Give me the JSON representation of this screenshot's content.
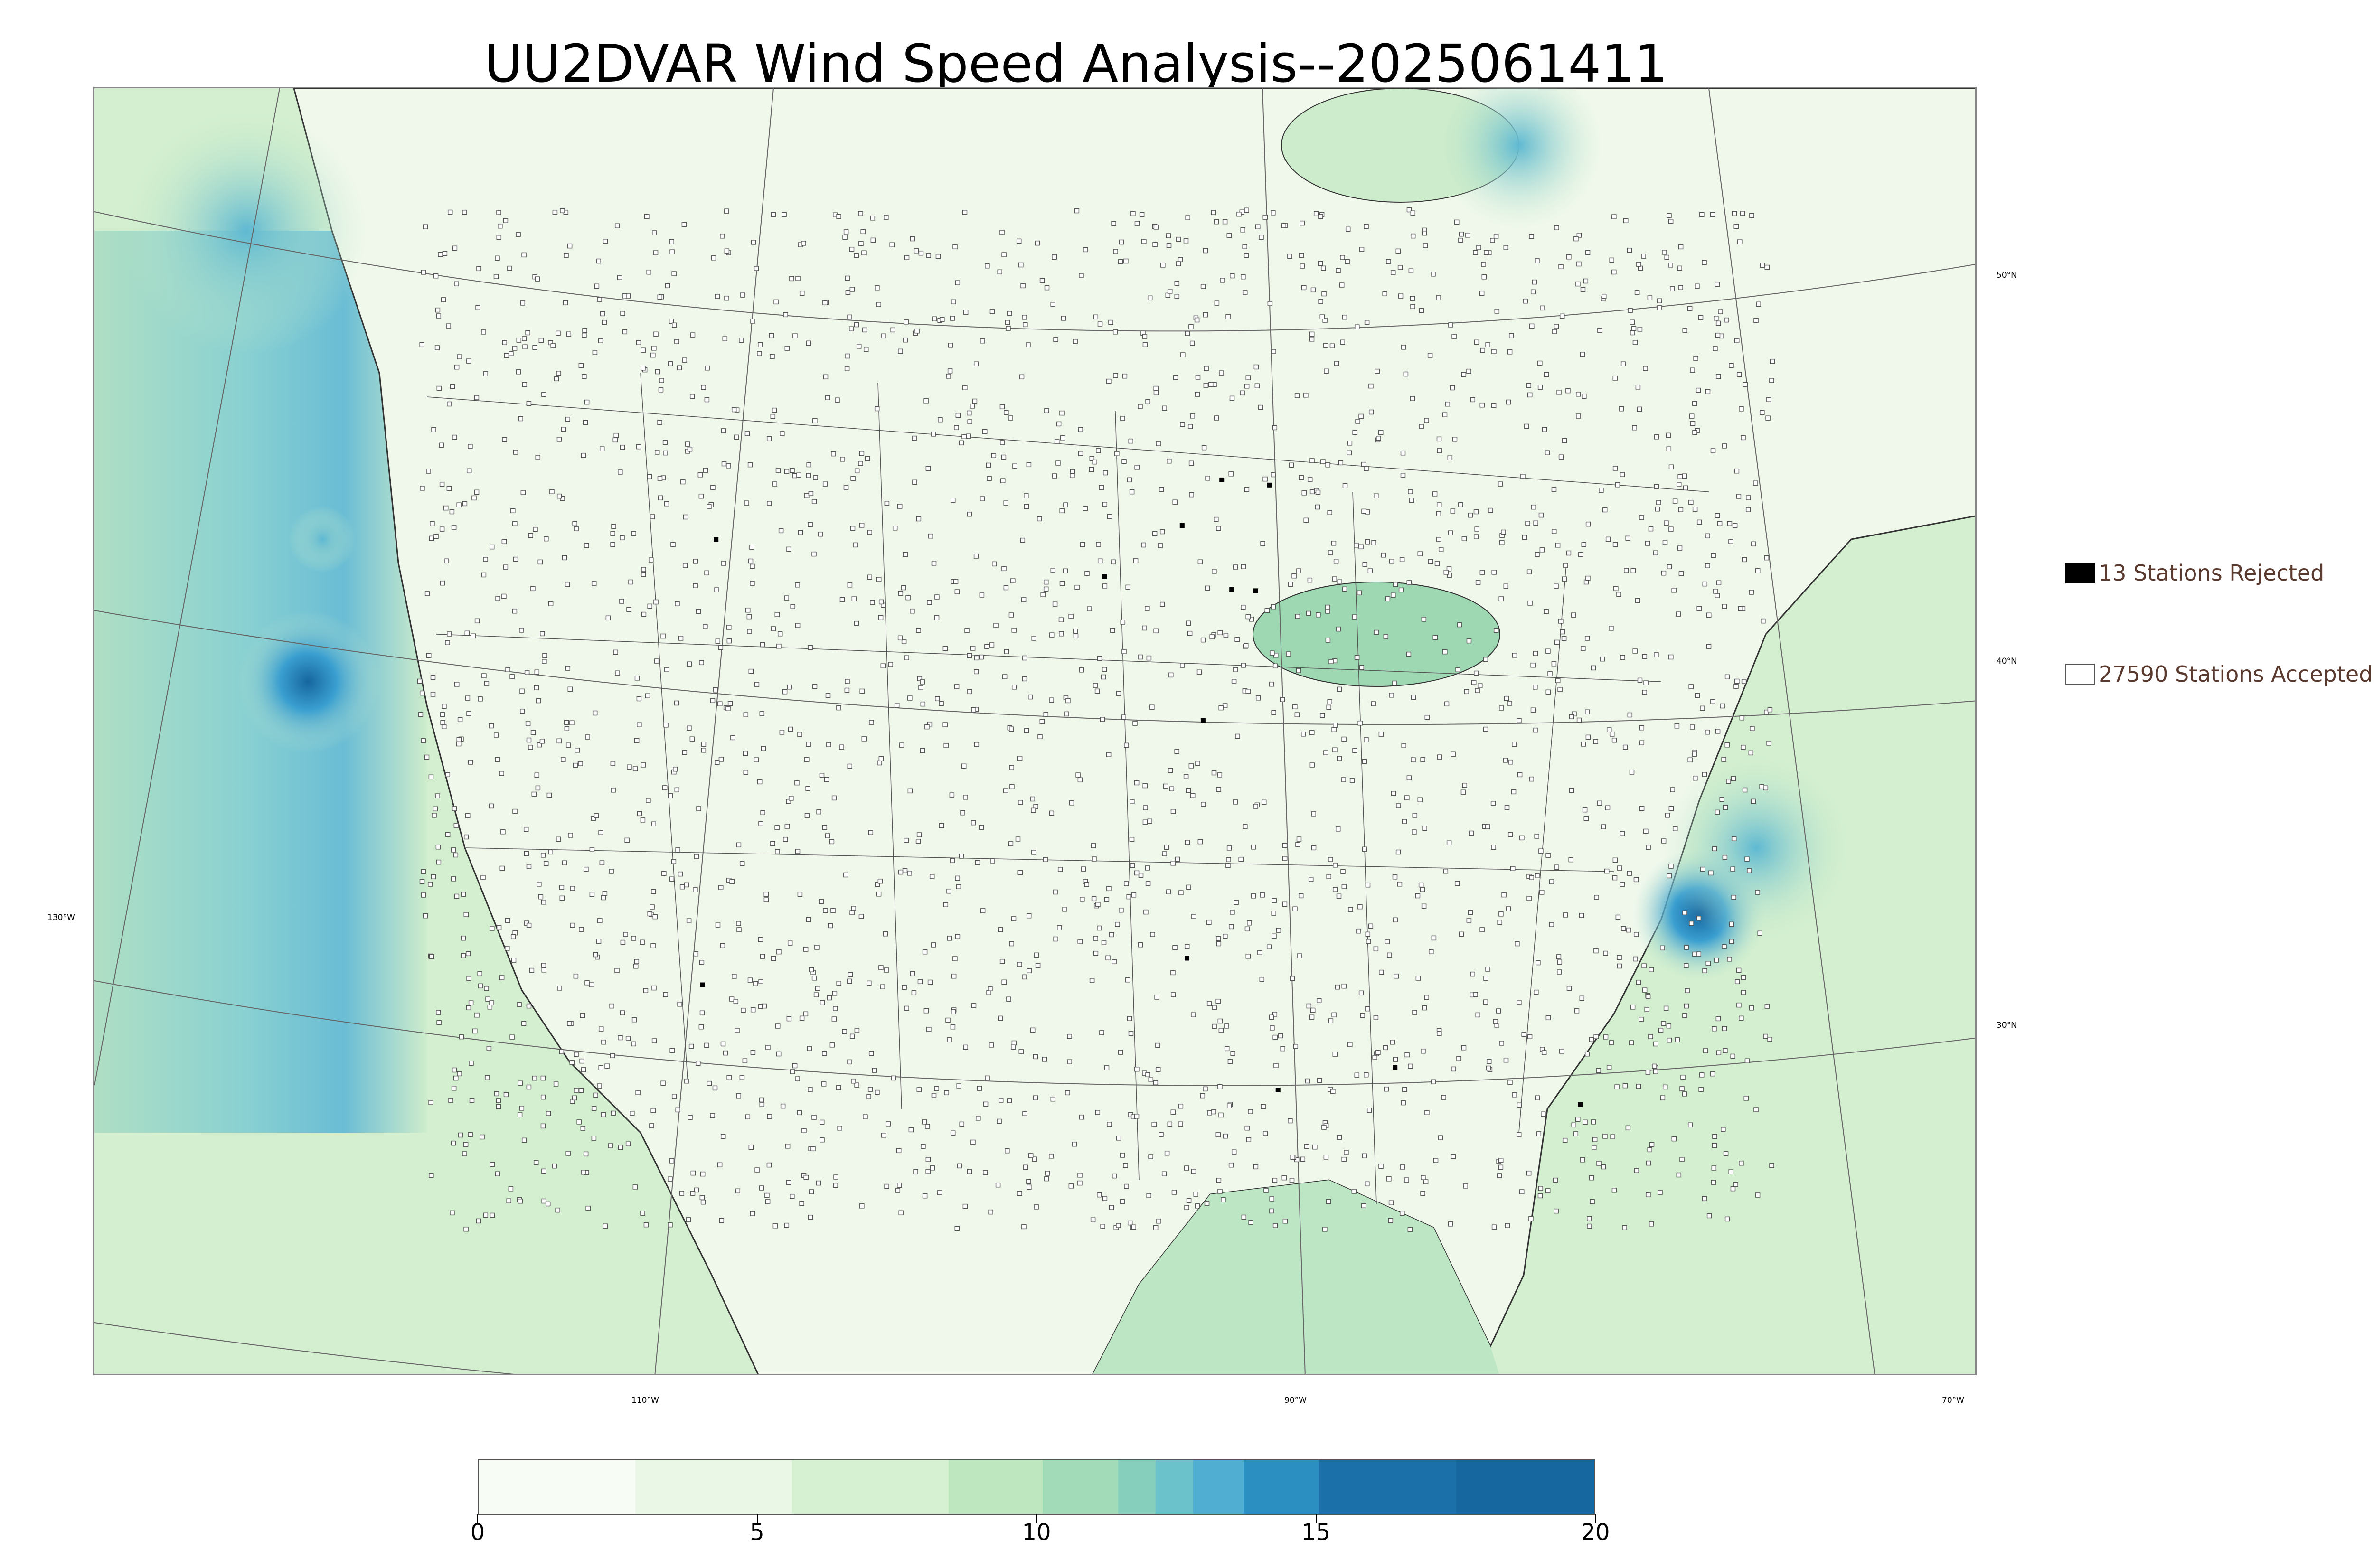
{
  "title": "UU2DVAR Wind Speed Analysis--2025061411",
  "map": {
    "lat_labels": [
      "50°N",
      "40°N",
      "130°W",
      "30°N"
    ],
    "lon_labels": [
      "110°W",
      "90°W",
      "70°W"
    ],
    "land_color": "#f1f9ef",
    "ocean_color": "#cfeec9",
    "strong_wind_color": "#2a8bc4"
  },
  "legend": {
    "rejected_label": "13 Stations Rejected",
    "accepted_label": "27590 Stations Accepted",
    "rejected_color": "#000000",
    "accepted_color": "#ffffff"
  },
  "colorbar": {
    "min": 0,
    "max": 20,
    "ticks": [
      "0",
      "5",
      "10",
      "15",
      "20"
    ],
    "colors": [
      "#f7fcf5",
      "#eaf7e6",
      "#d6f0d2",
      "#bee6bf",
      "#a2dbb7",
      "#86cfbd",
      "#6cc2cb",
      "#4faed1",
      "#2c8fc2",
      "#1c70a9",
      "#1666a0"
    ]
  }
}
